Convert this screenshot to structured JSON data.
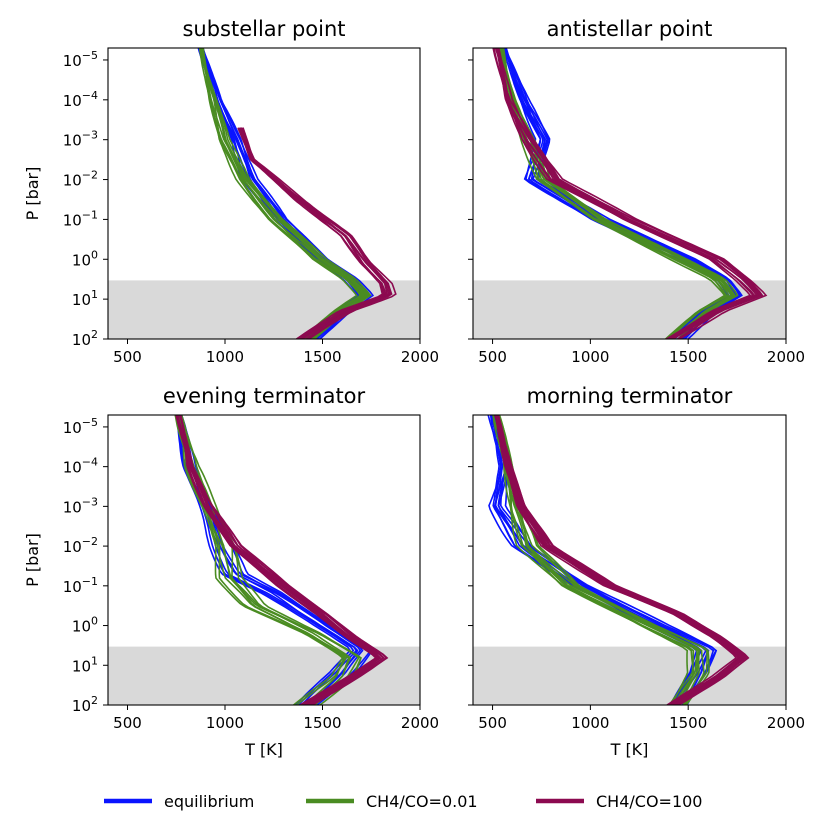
{
  "colors": {
    "equilibrium": "#0a14ff",
    "ch4_co_001": "#4a8c22",
    "ch4_co_100": "#8c0a50",
    "deep_shade": "#d9d9d9"
  },
  "legend": [
    {
      "key": "equilibrium",
      "label": "equilibrium"
    },
    {
      "key": "ch4_co_001",
      "label": "CH4/CO=0.01"
    },
    {
      "key": "ch4_co_100",
      "label": "CH4/CO=100"
    }
  ],
  "chart_data": [
    {
      "type": "line",
      "title": "substellar point",
      "xlabel": "",
      "ylabel": "P [bar]",
      "xlim": [
        400,
        2000
      ],
      "ylim_log10": [
        2,
        -5.3
      ],
      "y_scale": "log (inverted)",
      "xticks": [
        "500",
        "1000",
        "1500",
        "2000"
      ],
      "yticks": [
        {
          "exp": -5,
          "label": "10",
          "sup": "−5"
        },
        {
          "exp": -4,
          "label": "10",
          "sup": "−4"
        },
        {
          "exp": -3,
          "label": "10",
          "sup": "−3"
        },
        {
          "exp": -2,
          "label": "10",
          "sup": "−2"
        },
        {
          "exp": -1,
          "label": "10",
          "sup": "−1"
        },
        {
          "exp": 0,
          "label": "10",
          "sup": "0"
        },
        {
          "exp": 1,
          "label": "10",
          "sup": "1"
        },
        {
          "exp": 2,
          "label": "10",
          "sup": "2"
        }
      ],
      "show_ytick_labels": true,
      "shade_logp_from": 0.53,
      "series": [
        {
          "key": "equilibrium",
          "name": "equilibrium",
          "bundle": 10,
          "spread_T": 35,
          "logP": [
            -5.3,
            -4,
            -3,
            -2,
            -1,
            0,
            0.5,
            0.9,
            1.3,
            2
          ],
          "T": [
            880,
            960,
            1060,
            1130,
            1280,
            1500,
            1650,
            1720,
            1600,
            1450
          ]
        },
        {
          "key": "ch4_co_001",
          "name": "CH4/CO=0.01",
          "bundle": 10,
          "spread_T": 35,
          "logP": [
            -5.3,
            -4,
            -3,
            -2,
            -1,
            0,
            0.5,
            0.9,
            1.3,
            2
          ],
          "T": [
            880,
            940,
            990,
            1100,
            1260,
            1480,
            1640,
            1720,
            1600,
            1420
          ]
        },
        {
          "key": "ch4_co_100",
          "name": "CH4/CO=100",
          "bundle": 10,
          "spread_T": 30,
          "logP": [
            -3.3,
            -2.5,
            -1.5,
            -0.6,
            0.1,
            0.6,
            0.9,
            1.3,
            2
          ],
          "T": [
            1080,
            1140,
            1380,
            1620,
            1720,
            1820,
            1840,
            1620,
            1400
          ]
        }
      ]
    },
    {
      "type": "line",
      "title": "antistellar point",
      "xlabel": "",
      "ylabel": "",
      "xlim": [
        400,
        2000
      ],
      "ylim_log10": [
        2,
        -5.3
      ],
      "y_scale": "log (inverted)",
      "xticks": [
        "500",
        "1000",
        "1500",
        "2000"
      ],
      "yticks": [
        {
          "exp": -5,
          "label": "10",
          "sup": "−5"
        },
        {
          "exp": -4,
          "label": "10",
          "sup": "−4"
        },
        {
          "exp": -3,
          "label": "10",
          "sup": "−3"
        },
        {
          "exp": -2,
          "label": "10",
          "sup": "−2"
        },
        {
          "exp": -1,
          "label": "10",
          "sup": "−1"
        },
        {
          "exp": 0,
          "label": "10",
          "sup": "0"
        },
        {
          "exp": 1,
          "label": "10",
          "sup": "1"
        },
        {
          "exp": 2,
          "label": "10",
          "sup": "2"
        }
      ],
      "show_ytick_labels": false,
      "shade_logp_from": 0.53,
      "series": [
        {
          "key": "equilibrium",
          "name": "equilibrium",
          "bundle": 10,
          "spread_T": 40,
          "logP": [
            -5.3,
            -4,
            -3,
            -2,
            -1,
            0,
            0.5,
            0.9,
            1.3,
            2
          ],
          "T": [
            560,
            660,
            760,
            700,
            1050,
            1500,
            1680,
            1740,
            1600,
            1450
          ]
        },
        {
          "key": "ch4_co_001",
          "name": "CH4/CO=0.01",
          "bundle": 10,
          "spread_T": 35,
          "logP": [
            -5.3,
            -4,
            -3,
            -2,
            -1,
            0,
            0.5,
            0.9,
            1.3,
            2
          ],
          "T": [
            540,
            600,
            680,
            760,
            1050,
            1450,
            1650,
            1720,
            1580,
            1420
          ]
        },
        {
          "key": "ch4_co_100",
          "name": "CH4/CO=100",
          "bundle": 10,
          "spread_T": 35,
          "logP": [
            -5.3,
            -4,
            -3,
            -2,
            -1,
            0,
            0.5,
            0.9,
            1.3,
            2
          ],
          "T": [
            520,
            580,
            680,
            820,
            1200,
            1650,
            1780,
            1860,
            1650,
            1420
          ]
        }
      ]
    },
    {
      "type": "line",
      "title": "evening terminator",
      "xlabel": "T [K]",
      "ylabel": "P [bar]",
      "xlim": [
        400,
        2000
      ],
      "ylim_log10": [
        2,
        -5.3
      ],
      "y_scale": "log (inverted)",
      "xticks": [
        "500",
        "1000",
        "1500",
        "2000"
      ],
      "yticks": [
        {
          "exp": -5,
          "label": "10",
          "sup": "−5"
        },
        {
          "exp": -4,
          "label": "10",
          "sup": "−4"
        },
        {
          "exp": -3,
          "label": "10",
          "sup": "−3"
        },
        {
          "exp": -2,
          "label": "10",
          "sup": "−2"
        },
        {
          "exp": -1,
          "label": "10",
          "sup": "−1"
        },
        {
          "exp": 0,
          "label": "10",
          "sup": "0"
        },
        {
          "exp": 1,
          "label": "10",
          "sup": "1"
        },
        {
          "exp": 2,
          "label": "10",
          "sup": "2"
        }
      ],
      "show_ytick_labels": true,
      "shade_logp_from": 0.53,
      "series": [
        {
          "key": "equilibrium",
          "name": "equilibrium",
          "bundle": 8,
          "spread_T": 55,
          "logP": [
            -5.3,
            -4,
            -3,
            -2,
            -1.3,
            -0.8,
            0,
            0.6,
            1.2,
            2
          ],
          "T": [
            760,
            820,
            900,
            980,
            1050,
            1250,
            1500,
            1700,
            1600,
            1420
          ]
        },
        {
          "key": "ch4_co_001",
          "name": "CH4/CO=0.01",
          "bundle": 8,
          "spread_T": 55,
          "logP": [
            -5.3,
            -4,
            -3,
            -2,
            -1.2,
            -0.5,
            0.2,
            0.8,
            1.3,
            2
          ],
          "T": [
            760,
            830,
            920,
            1000,
            1020,
            1150,
            1450,
            1650,
            1600,
            1420
          ]
        },
        {
          "key": "ch4_co_100",
          "name": "CH4/CO=100",
          "bundle": 12,
          "spread_T": 30,
          "logP": [
            -5.3,
            -4,
            -3,
            -2,
            -1,
            -0.3,
            0.3,
            0.8,
            1.3,
            2
          ],
          "T": [
            760,
            820,
            920,
            1050,
            1300,
            1500,
            1650,
            1800,
            1650,
            1420
          ]
        }
      ]
    },
    {
      "type": "line",
      "title": "morning terminator",
      "xlabel": "T [K]",
      "ylabel": "",
      "xlim": [
        400,
        2000
      ],
      "ylim_log10": [
        2,
        -5.3
      ],
      "y_scale": "log (inverted)",
      "xticks": [
        "500",
        "1000",
        "1500",
        "2000"
      ],
      "yticks": [
        {
          "exp": -5,
          "label": "10",
          "sup": "−5"
        },
        {
          "exp": -4,
          "label": "10",
          "sup": "−4"
        },
        {
          "exp": -3,
          "label": "10",
          "sup": "−3"
        },
        {
          "exp": -2,
          "label": "10",
          "sup": "−2"
        },
        {
          "exp": -1,
          "label": "10",
          "sup": "−1"
        },
        {
          "exp": 0,
          "label": "10",
          "sup": "0"
        },
        {
          "exp": 1,
          "label": "10",
          "sup": "1"
        },
        {
          "exp": 2,
          "label": "10",
          "sup": "2"
        }
      ],
      "show_ytick_labels": false,
      "shade_logp_from": 0.53,
      "series": [
        {
          "key": "equilibrium",
          "name": "equilibrium",
          "bundle": 10,
          "spread_T": 45,
          "logP": [
            -5.3,
            -4,
            -3,
            -2,
            -1,
            0,
            0.6,
            1.2,
            2
          ],
          "T": [
            500,
            560,
            520,
            650,
            950,
            1350,
            1600,
            1550,
            1450
          ]
        },
        {
          "key": "ch4_co_001",
          "name": "CH4/CO=0.01",
          "bundle": 10,
          "spread_T": 45,
          "logP": [
            -5.3,
            -4,
            -3,
            -2,
            -1,
            0,
            0.6,
            1.2,
            2
          ],
          "T": [
            520,
            580,
            620,
            680,
            900,
            1300,
            1550,
            1550,
            1450
          ]
        },
        {
          "key": "ch4_co_100",
          "name": "CH4/CO=100",
          "bundle": 14,
          "spread_T": 28,
          "logP": [
            -5.3,
            -4,
            -3,
            -2,
            -1,
            -0.3,
            0.3,
            0.8,
            1.3,
            2
          ],
          "T": [
            520,
            580,
            650,
            780,
            1100,
            1450,
            1650,
            1780,
            1650,
            1420
          ]
        }
      ]
    }
  ]
}
